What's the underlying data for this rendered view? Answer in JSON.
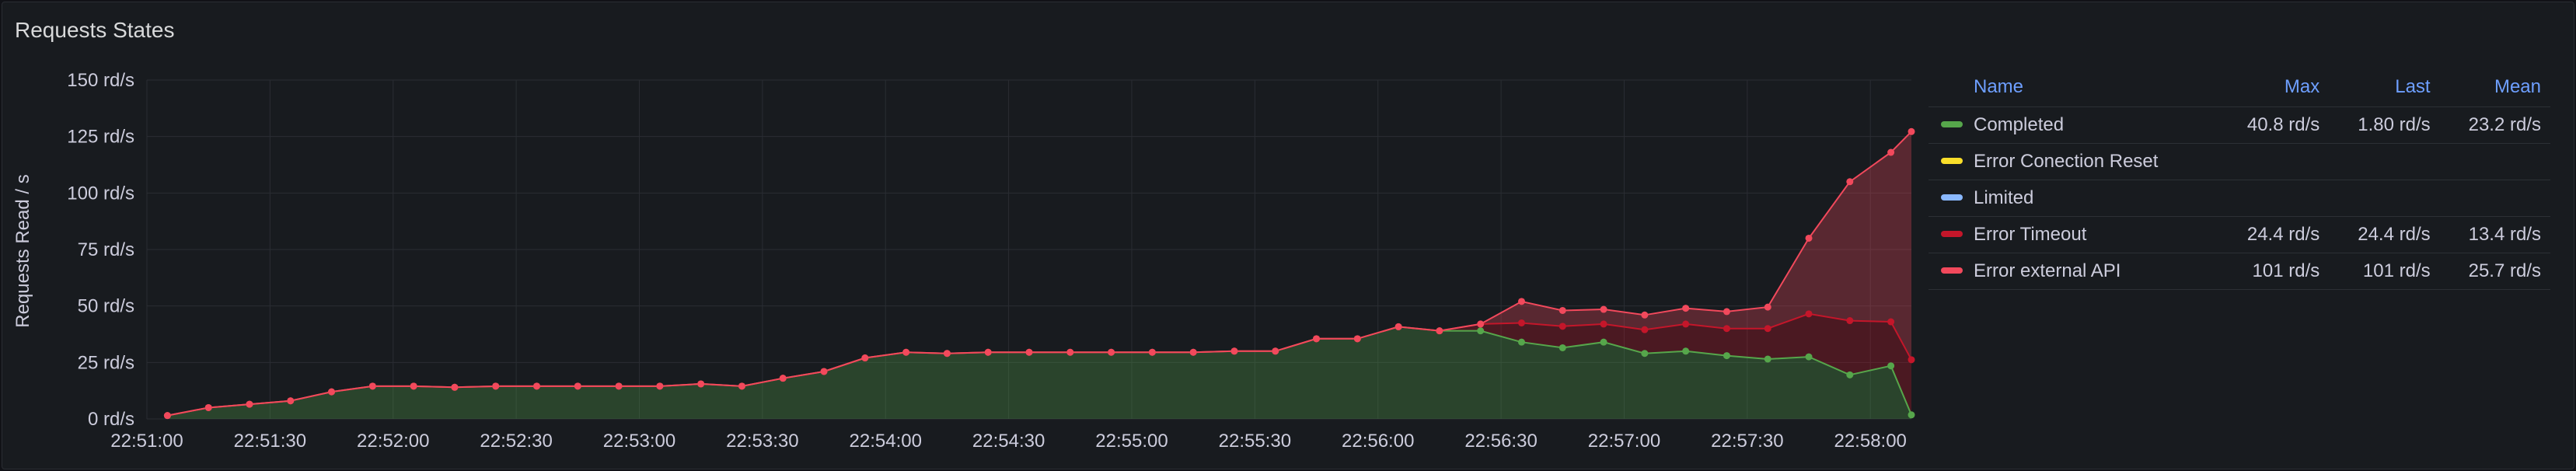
{
  "panel": {
    "title": "Requests States"
  },
  "legend": {
    "headers": [
      "Name",
      "Max",
      "Last",
      "Mean"
    ],
    "rows": [
      {
        "name": "Completed",
        "color": "#56a64b",
        "max": "40.8 rd/s",
        "last": "1.80 rd/s",
        "mean": "23.2 rd/s"
      },
      {
        "name": "Error Conection Reset",
        "color": "#fade2a",
        "max": "",
        "last": "",
        "mean": ""
      },
      {
        "name": "Limited",
        "color": "#8ab8ff",
        "max": "",
        "last": "",
        "mean": ""
      },
      {
        "name": "Error Timeout",
        "color": "#c4162a",
        "max": "24.4 rd/s",
        "last": "24.4 rd/s",
        "mean": "13.4 rd/s"
      },
      {
        "name": "Error external API",
        "color": "#f2495c",
        "max": "101 rd/s",
        "last": "101 rd/s",
        "mean": "25.7 rd/s"
      }
    ]
  },
  "chart_data": {
    "type": "area",
    "stacked": true,
    "ylabel": "Requests Read / s",
    "ylim": [
      0,
      150
    ],
    "y_ticks": [
      "0 rd/s",
      "25 rd/s",
      "50 rd/s",
      "75 rd/s",
      "100 rd/s",
      "125 rd/s",
      "150 rd/s"
    ],
    "y_tick_values": [
      0,
      25,
      50,
      75,
      100,
      125,
      150
    ],
    "x_ticks": [
      "22:51:00",
      "22:51:30",
      "22:52:00",
      "22:52:30",
      "22:53:00",
      "22:53:30",
      "22:54:00",
      "22:54:30",
      "22:55:00",
      "22:55:30",
      "22:56:00",
      "22:56:30",
      "22:57:00",
      "22:57:30",
      "22:58:00"
    ],
    "xlim": [
      "22:51:00",
      "22:58:10"
    ],
    "x": [
      "22:51:05",
      "22:51:15",
      "22:51:25",
      "22:51:35",
      "22:51:45",
      "22:51:55",
      "22:52:05",
      "22:52:15",
      "22:52:25",
      "22:52:35",
      "22:52:45",
      "22:52:55",
      "22:53:05",
      "22:53:15",
      "22:53:25",
      "22:53:35",
      "22:53:45",
      "22:53:55",
      "22:54:05",
      "22:54:15",
      "22:54:25",
      "22:54:35",
      "22:54:45",
      "22:54:55",
      "22:55:05",
      "22:55:15",
      "22:55:25",
      "22:55:35",
      "22:55:45",
      "22:55:55",
      "22:56:05",
      "22:56:15",
      "22:56:25",
      "22:56:35",
      "22:56:45",
      "22:56:55",
      "22:57:05",
      "22:57:15",
      "22:57:25",
      "22:57:35",
      "22:57:45",
      "22:57:55",
      "22:58:05",
      "22:58:10"
    ],
    "grid": true,
    "legend_position": "right",
    "series": [
      {
        "name": "Completed",
        "color": "#56a64b",
        "values": [
          1.5,
          5,
          6.5,
          8,
          12,
          14.5,
          14.5,
          14,
          14.5,
          14.5,
          14.5,
          14.5,
          14.5,
          15.5,
          14.5,
          18,
          21,
          27,
          29.5,
          29,
          29.5,
          29.5,
          29.5,
          29.5,
          29.5,
          29.5,
          30,
          30,
          35.5,
          35.5,
          40.8,
          39,
          39,
          34,
          31.5,
          34,
          29,
          30,
          28,
          26.5,
          27.5,
          19.5,
          23.5,
          1.8
        ]
      },
      {
        "name": "Error Conection Reset",
        "color": "#fade2a",
        "values": [
          0,
          0,
          0,
          0,
          0,
          0,
          0,
          0,
          0,
          0,
          0,
          0,
          0,
          0,
          0,
          0,
          0,
          0,
          0,
          0,
          0,
          0,
          0,
          0,
          0,
          0,
          0,
          0,
          0,
          0,
          0,
          0,
          0,
          0,
          0,
          0,
          0,
          0,
          0,
          0,
          0,
          0,
          0,
          0
        ]
      },
      {
        "name": "Limited",
        "color": "#8ab8ff",
        "values": [
          0,
          0,
          0,
          0,
          0,
          0,
          0,
          0,
          0,
          0,
          0,
          0,
          0,
          0,
          0,
          0,
          0,
          0,
          0,
          0,
          0,
          0,
          0,
          0,
          0,
          0,
          0,
          0,
          0,
          0,
          0,
          0,
          0,
          0,
          0,
          0,
          0,
          0,
          0,
          0,
          0,
          0,
          0,
          0
        ]
      },
      {
        "name": "Error Timeout",
        "color": "#c4162a",
        "values": [
          0,
          0,
          0,
          0,
          0,
          0,
          0,
          0,
          0,
          0,
          0,
          0,
          0,
          0,
          0,
          0,
          0,
          0,
          0,
          0,
          0,
          0,
          0,
          0,
          0,
          0,
          0,
          0,
          0,
          0,
          0,
          0,
          3,
          8.5,
          9.5,
          8,
          10.5,
          12,
          12,
          13.5,
          19,
          24,
          19.5,
          24.4
        ]
      },
      {
        "name": "Error external API",
        "color": "#f2495c",
        "values": [
          0,
          0,
          0,
          0,
          0,
          0,
          0,
          0,
          0,
          0,
          0,
          0,
          0,
          0,
          0,
          0,
          0,
          0,
          0,
          0,
          0,
          0,
          0,
          0,
          0,
          0,
          0,
          0,
          0,
          0,
          0,
          0,
          0,
          9.5,
          7,
          6.5,
          6.5,
          7,
          7.5,
          9.5,
          33.5,
          61.5,
          75,
          101
        ]
      }
    ]
  }
}
